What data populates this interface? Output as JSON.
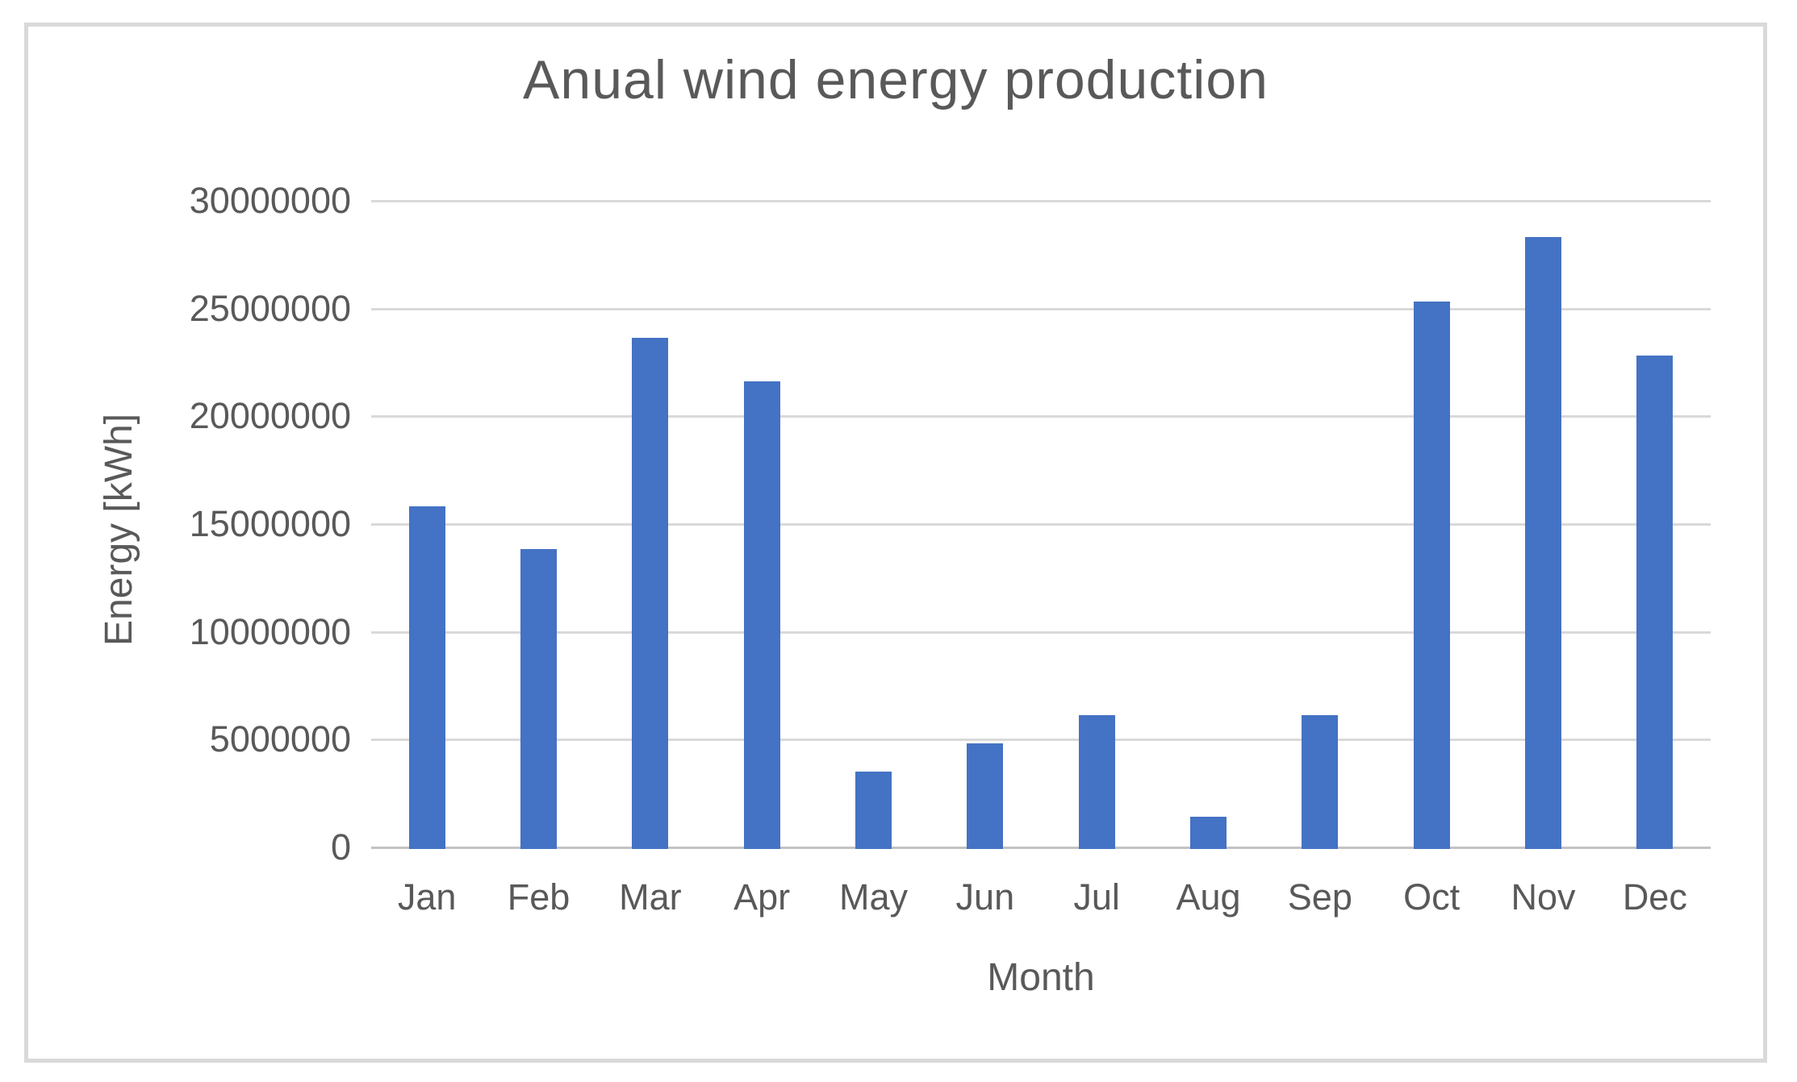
{
  "chart_data": {
    "type": "bar",
    "title": "Anual wind energy production",
    "xlabel": "Month",
    "ylabel": "Energy [kWh]",
    "categories": [
      "Jan",
      "Feb",
      "Mar",
      "Apr",
      "May",
      "Jun",
      "Jul",
      "Aug",
      "Sep",
      "Oct",
      "Nov",
      "Dec"
    ],
    "values": [
      15900000,
      13900000,
      23700000,
      21700000,
      3600000,
      4900000,
      6200000,
      1500000,
      6200000,
      25400000,
      28400000,
      22900000
    ],
    "yticks": [
      0,
      5000000,
      10000000,
      15000000,
      20000000,
      25000000,
      30000000
    ],
    "ylim": [
      0,
      30000000
    ],
    "grid": true,
    "legend": false,
    "colors": {
      "bar": "#4472c4",
      "gridline": "#d9d9d9",
      "axis_line": "#c3c3c3",
      "text": "#595959",
      "frame_border": "#d9d9d9",
      "background": "#ffffff"
    }
  }
}
